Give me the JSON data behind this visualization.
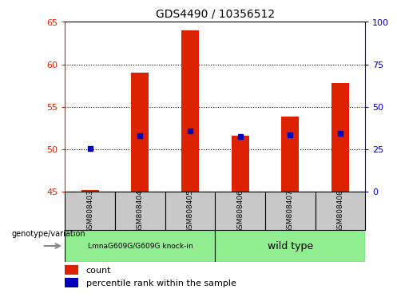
{
  "title": "GDS4490 / 10356512",
  "samples": [
    "GSM808403",
    "GSM808404",
    "GSM808405",
    "GSM808406",
    "GSM808407",
    "GSM808408"
  ],
  "count_values": [
    45.2,
    59.0,
    64.0,
    51.6,
    53.8,
    57.8
  ],
  "percentile_values": [
    25.5,
    33.0,
    35.5,
    32.5,
    33.2,
    34.5
  ],
  "ylim_left": [
    45,
    65
  ],
  "ylim_right": [
    0,
    100
  ],
  "yticks_left": [
    45,
    50,
    55,
    60,
    65
  ],
  "yticks_right": [
    0,
    25,
    50,
    75,
    100
  ],
  "grid_vals": [
    50,
    55,
    60
  ],
  "bar_bottom": 45,
  "left_color": "#DD2200",
  "right_color": "#0000BB",
  "bar_color": "#DD2200",
  "percentile_color": "#0000BB",
  "bg_sample": "#C8C8C8",
  "bg_group1": "#90EE90",
  "bg_group2": "#90EE90",
  "group1_label": "LmnaG609G/G609G knock-in",
  "group2_label": "wild type",
  "legend_count": "count",
  "legend_pct": "percentile rank within the sample",
  "genotype_label": "genotype/variation",
  "n_group1": 3,
  "n_group2": 3
}
